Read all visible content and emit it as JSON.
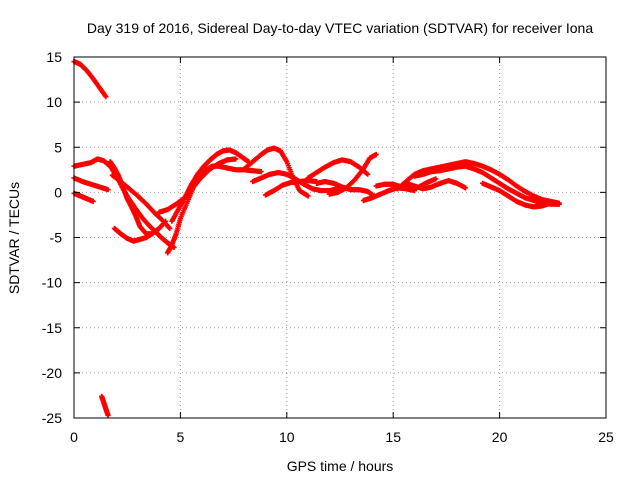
{
  "chart_data": {
    "type": "scatter",
    "title": "Day 319 of 2016, Sidereal Day-to-day VTEC variation (SDTVAR) for receiver Iona",
    "xlabel": "GPS time / hours",
    "ylabel": "SDTVAR / TECUs",
    "xlim": [
      0,
      25
    ],
    "ylim": [
      -25,
      15
    ],
    "xticks": [
      0,
      5,
      10,
      15,
      20,
      25
    ],
    "yticks": [
      -25,
      -20,
      -15,
      -10,
      -5,
      0,
      5,
      10,
      15
    ],
    "grid": true,
    "marker": "plus",
    "series_color": "#ff0000",
    "tracks": [
      {
        "name": "arc-top-left",
        "x": [
          0.0,
          0.3,
          0.6,
          0.9,
          1.2,
          1.5
        ],
        "y": [
          14.5,
          14.2,
          13.5,
          12.6,
          11.6,
          10.6
        ]
      },
      {
        "name": "arc-bottom-left",
        "x": [
          1.3,
          1.4,
          1.5,
          1.6
        ],
        "y": [
          -22.6,
          -23.3,
          -24.0,
          -24.7
        ]
      },
      {
        "name": "arc-a",
        "x": [
          0.0,
          0.4,
          0.8,
          1.1,
          1.4,
          1.7,
          2.0,
          2.3,
          2.6,
          2.9,
          3.2,
          3.5,
          3.8,
          4.1,
          4.4,
          4.7
        ],
        "y": [
          2.9,
          3.1,
          3.3,
          3.7,
          3.5,
          2.9,
          1.8,
          0.4,
          -0.8,
          -1.8,
          -2.8,
          -3.6,
          -4.3,
          -5.0,
          -5.6,
          -6.1
        ]
      },
      {
        "name": "arc-b",
        "x": [
          0.0,
          0.4,
          0.8,
          1.2,
          1.6
        ],
        "y": [
          1.6,
          1.2,
          0.9,
          0.6,
          0.3
        ]
      },
      {
        "name": "arc-c",
        "x": [
          0.0,
          0.3,
          0.6,
          0.9
        ],
        "y": [
          -0.1,
          -0.4,
          -0.7,
          -1.0
        ]
      },
      {
        "name": "arc-d",
        "x": [
          1.7,
          1.9,
          2.1,
          2.3,
          2.5,
          2.7,
          2.9,
          3.1,
          3.4,
          3.7
        ],
        "y": [
          3.4,
          2.7,
          1.8,
          0.6,
          -0.7,
          -1.6,
          -2.6,
          -3.8,
          -4.6,
          -4.6
        ]
      },
      {
        "name": "arc-e",
        "x": [
          1.9,
          2.2,
          2.5,
          2.8,
          3.1,
          3.4,
          3.7,
          4.0,
          4.3
        ],
        "y": [
          -4.0,
          -4.6,
          -5.1,
          -5.4,
          -5.2,
          -5.0,
          -4.5,
          -4.0,
          -3.2
        ]
      },
      {
        "name": "arc-f",
        "x": [
          1.8,
          2.2,
          2.6,
          3.0,
          3.4,
          3.8,
          4.2,
          4.5
        ],
        "y": [
          1.9,
          1.2,
          0.4,
          -0.4,
          -1.3,
          -2.3,
          -3.2,
          -4.0
        ]
      },
      {
        "name": "arc-g",
        "x": [
          4.4,
          4.6,
          4.8,
          5.0,
          5.3,
          5.6,
          5.9,
          6.2,
          6.5,
          6.8,
          7.2,
          7.6,
          8.0,
          8.4,
          8.8
        ],
        "y": [
          -6.7,
          -5.8,
          -4.6,
          -2.9,
          -1.2,
          0.5,
          1.7,
          2.5,
          2.9,
          2.9,
          2.7,
          2.5,
          2.5,
          2.4,
          2.3
        ]
      },
      {
        "name": "arc-h",
        "x": [
          4.6,
          4.9,
          5.2,
          5.5,
          5.8,
          6.1,
          6.4,
          6.7,
          7.0,
          7.3,
          7.6,
          7.9,
          8.2
        ],
        "y": [
          -3.2,
          -1.9,
          -0.6,
          0.8,
          2.0,
          2.9,
          3.6,
          4.2,
          4.6,
          4.7,
          4.4,
          3.9,
          3.4
        ]
      },
      {
        "name": "arc-i",
        "x": [
          4.0,
          4.4,
          4.8,
          5.2,
          5.6,
          6.0,
          6.4,
          6.8,
          7.2,
          7.6
        ],
        "y": [
          -2.2,
          -1.9,
          -1.3,
          -0.6,
          0.6,
          1.7,
          2.6,
          3.2,
          3.6,
          3.7
        ]
      },
      {
        "name": "arc-j",
        "x": [
          8.0,
          8.4,
          8.8,
          9.1,
          9.4,
          9.7,
          10.0,
          10.3,
          10.6,
          11.0
        ],
        "y": [
          2.6,
          3.4,
          4.2,
          4.7,
          4.9,
          4.6,
          3.4,
          1.6,
          0.2,
          -0.4
        ]
      },
      {
        "name": "arc-k",
        "x": [
          8.4,
          8.8,
          9.2,
          9.6,
          10.0,
          10.4,
          10.8,
          11.2,
          11.6,
          12.0,
          12.4
        ],
        "y": [
          1.2,
          1.6,
          2.0,
          2.2,
          2.0,
          1.5,
          0.9,
          0.4,
          0.2,
          0.2,
          0.4
        ]
      },
      {
        "name": "arc-l",
        "x": [
          9.0,
          9.4,
          9.8,
          10.2,
          10.6,
          11.0,
          11.4
        ],
        "y": [
          -0.3,
          0.2,
          0.8,
          1.1,
          1.2,
          1.3,
          1.2
        ]
      },
      {
        "name": "arc-m",
        "x": [
          11.0,
          11.4,
          11.8,
          12.2,
          12.6,
          13.0,
          13.4,
          13.8
        ],
        "y": [
          1.6,
          2.2,
          2.8,
          3.3,
          3.6,
          3.4,
          2.8,
          2.0
        ]
      },
      {
        "name": "arc-n",
        "x": [
          11.4,
          11.8,
          12.2,
          12.6,
          13.0,
          13.4,
          13.8,
          14.1
        ],
        "y": [
          1.0,
          1.2,
          1.0,
          0.6,
          0.3,
          0.3,
          0.1,
          -0.4
        ]
      },
      {
        "name": "arc-o",
        "x": [
          12.0,
          12.4,
          12.8,
          13.2,
          13.6,
          13.9,
          14.2
        ],
        "y": [
          -0.2,
          0.0,
          0.5,
          1.4,
          2.6,
          3.8,
          4.2
        ]
      },
      {
        "name": "arc-p",
        "x": [
          14.2,
          14.6,
          15.0,
          15.4,
          15.8,
          16.2,
          16.6,
          17.0
        ],
        "y": [
          0.7,
          0.9,
          0.9,
          0.6,
          0.4,
          0.6,
          1.1,
          1.5
        ]
      },
      {
        "name": "arc-q",
        "x": [
          13.6,
          14.0,
          14.4,
          14.8,
          15.2,
          15.6,
          16.0
        ],
        "y": [
          -0.9,
          -0.6,
          -0.2,
          0.2,
          0.5,
          0.4,
          0.2
        ]
      },
      {
        "name": "arc-r",
        "x": [
          15.2,
          15.6,
          16.0,
          16.4,
          16.8,
          17.2,
          17.6,
          18.0,
          18.4,
          18.8,
          19.2,
          19.6,
          20.0,
          20.4,
          20.8,
          21.2,
          21.6,
          22.0,
          22.4,
          22.8
        ],
        "y": [
          0.4,
          1.2,
          2.0,
          2.4,
          2.6,
          2.8,
          3.0,
          3.2,
          3.4,
          3.2,
          2.9,
          2.5,
          2.0,
          1.4,
          0.7,
          0.1,
          -0.4,
          -0.8,
          -1.0,
          -1.2
        ]
      },
      {
        "name": "arc-s",
        "x": [
          16.0,
          16.4,
          16.8,
          17.2,
          17.6,
          18.0,
          18.4,
          18.8,
          19.2,
          19.6,
          20.0,
          20.4,
          20.8,
          21.2,
          21.6,
          22.0,
          22.4,
          22.8
        ],
        "y": [
          1.8,
          2.0,
          2.3,
          2.4,
          2.6,
          2.8,
          2.9,
          2.6,
          2.2,
          1.6,
          1.0,
          0.4,
          -0.1,
          -0.6,
          -0.9,
          -1.2,
          -1.3,
          -1.3
        ]
      },
      {
        "name": "arc-t",
        "x": [
          15.6,
          16.0,
          16.4,
          16.8,
          17.2,
          17.6,
          18.0,
          18.4
        ],
        "y": [
          1.0,
          0.7,
          0.4,
          0.6,
          1.0,
          1.3,
          1.0,
          0.5
        ]
      },
      {
        "name": "arc-u",
        "x": [
          19.2,
          19.6,
          20.0,
          20.4,
          20.8,
          21.2,
          21.6,
          22.0,
          22.4,
          22.8
        ],
        "y": [
          1.0,
          0.6,
          0.2,
          -0.4,
          -1.0,
          -1.4,
          -1.6,
          -1.5,
          -1.2,
          -1.3
        ]
      }
    ]
  }
}
